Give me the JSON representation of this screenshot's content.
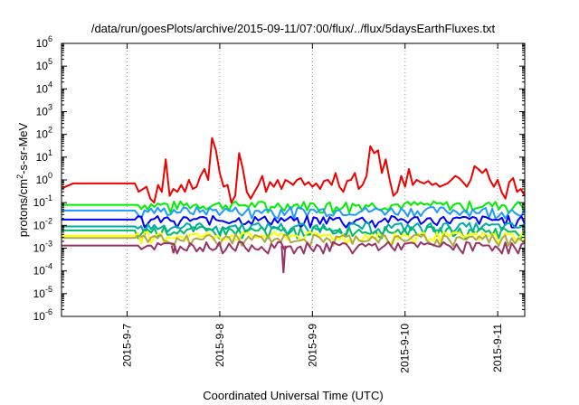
{
  "chart_data": {
    "type": "line",
    "title": "/data/run/goesPlots/archive/2015-09-11/07:00/flux/../flux/5daysEarthFluxes.txt",
    "xlabel": "Coordinated Universal Time (UTC)",
    "ylabel_main": "protons/cm",
    "ylabel_sup": "2",
    "ylabel_rest": "-s-sr-MeV",
    "y_scale": "log",
    "ylim": [
      1e-06,
      1000000.0
    ],
    "y_tick_base": "10",
    "y_ticks": [
      {
        "exp": "-6",
        "value": 1e-06
      },
      {
        "exp": "-5",
        "value": 1e-05
      },
      {
        "exp": "-4",
        "value": 0.0001
      },
      {
        "exp": "-3",
        "value": 0.001
      },
      {
        "exp": "-2",
        "value": 0.01
      },
      {
        "exp": "-1",
        "value": 0.1
      },
      {
        "exp": "0",
        "value": 1
      },
      {
        "exp": "1",
        "value": 10
      },
      {
        "exp": "2",
        "value": 100
      },
      {
        "exp": "3",
        "value": 1000
      },
      {
        "exp": "4",
        "value": 10000
      },
      {
        "exp": "5",
        "value": 100000
      },
      {
        "exp": "6",
        "value": 1000000
      }
    ],
    "xlim": [
      "2015-09-06 07:00",
      "2015-09-11 07:00"
    ],
    "x_ticks": [
      "2015-9-7",
      "2015-9-8",
      "2015-9-9",
      "2015-9-10",
      "2015-9-11"
    ],
    "grid": true,
    "legend": "none",
    "series": [
      {
        "color": "#ee0000",
        "points": [
          [
            "2015-09-06 07:00",
            0.4
          ],
          [
            "2015-09-06 08:00",
            0.5
          ],
          [
            "2015-09-06 10:00",
            0.7
          ],
          [
            "2015-09-06 12:00",
            0.7
          ],
          [
            "2015-09-06 16:00",
            0.7
          ],
          [
            "2015-09-06 20:00",
            0.7
          ],
          [
            "2015-09-07 00:00",
            0.7
          ],
          [
            "2015-09-07 02:00",
            0.7
          ],
          [
            "2015-09-07 03:00",
            0.3
          ],
          [
            "2015-09-07 05:00",
            0.5
          ],
          [
            "2015-09-07 06:00",
            0.15
          ],
          [
            "2015-09-07 07:00",
            0.1
          ],
          [
            "2015-09-07 08:00",
            0.6
          ],
          [
            "2015-09-07 09:00",
            0.3
          ],
          [
            "2015-09-07 10:00",
            8
          ],
          [
            "2015-09-07 11:00",
            0.2
          ],
          [
            "2015-09-07 12:00",
            0.4
          ],
          [
            "2015-09-07 13:00",
            0.3
          ],
          [
            "2015-09-07 14:00",
            0.6
          ],
          [
            "2015-09-07 15:00",
            0.3
          ],
          [
            "2015-09-07 16:00",
            1
          ],
          [
            "2015-09-07 17:00",
            0.4
          ],
          [
            "2015-09-07 18:00",
            0.5
          ],
          [
            "2015-09-07 19:00",
            1.5
          ],
          [
            "2015-09-07 20:00",
            3
          ],
          [
            "2015-09-07 21:00",
            1
          ],
          [
            "2015-09-07 22:00",
            70
          ],
          [
            "2015-09-07 23:00",
            20
          ],
          [
            "2015-09-08 00:00",
            2
          ],
          [
            "2015-09-08 01:00",
            0.5
          ],
          [
            "2015-09-08 02:00",
            0.6
          ],
          [
            "2015-09-08 03:00",
            0.1
          ],
          [
            "2015-09-08 04:00",
            0.2
          ],
          [
            "2015-09-08 05:00",
            15
          ],
          [
            "2015-09-08 06:00",
            3
          ],
          [
            "2015-09-08 07:00",
            0.3
          ],
          [
            "2015-09-08 08:00",
            0.15
          ],
          [
            "2015-09-08 09:00",
            0.3
          ],
          [
            "2015-09-08 10:00",
            0.6
          ],
          [
            "2015-09-08 11:00",
            1.5
          ],
          [
            "2015-09-08 12:00",
            0.3
          ],
          [
            "2015-09-08 13:00",
            0.8
          ],
          [
            "2015-09-08 14:00",
            0.5
          ],
          [
            "2015-09-08 15:00",
            1
          ],
          [
            "2015-09-08 16:00",
            0.4
          ],
          [
            "2015-09-08 17:00",
            1
          ],
          [
            "2015-09-08 18:00",
            0.8
          ],
          [
            "2015-09-08 19:00",
            0.6
          ],
          [
            "2015-09-08 20:00",
            1
          ],
          [
            "2015-09-08 21:00",
            1.2
          ],
          [
            "2015-09-08 22:00",
            0.6
          ],
          [
            "2015-09-08 23:00",
            0.8
          ],
          [
            "2015-09-09 00:00",
            0.5
          ],
          [
            "2015-09-09 01:00",
            0.7
          ],
          [
            "2015-09-09 02:00",
            0.4
          ],
          [
            "2015-09-09 03:00",
            0.9
          ],
          [
            "2015-09-09 04:00",
            1
          ],
          [
            "2015-09-09 05:00",
            0.6
          ],
          [
            "2015-09-09 06:00",
            2
          ],
          [
            "2015-09-09 07:00",
            0.5
          ],
          [
            "2015-09-09 08:00",
            0.3
          ],
          [
            "2015-09-09 09:00",
            0.9
          ],
          [
            "2015-09-09 10:00",
            1
          ],
          [
            "2015-09-09 11:00",
            2
          ],
          [
            "2015-09-09 12:00",
            0.4
          ],
          [
            "2015-09-09 13:00",
            0.6
          ],
          [
            "2015-09-09 14:00",
            1.5
          ],
          [
            "2015-09-09 15:00",
            30
          ],
          [
            "2015-09-09 16:00",
            15
          ],
          [
            "2015-09-09 17:00",
            20
          ],
          [
            "2015-09-09 18:00",
            2
          ],
          [
            "2015-09-09 19:00",
            8
          ],
          [
            "2015-09-09 20:00",
            1
          ],
          [
            "2015-09-09 21:00",
            0.2
          ],
          [
            "2015-09-09 22:00",
            0.3
          ],
          [
            "2015-09-09 23:00",
            1.5
          ],
          [
            "2015-09-10 00:00",
            0.5
          ],
          [
            "2015-09-10 01:00",
            3
          ],
          [
            "2015-09-10 02:00",
            0.6
          ],
          [
            "2015-09-10 03:00",
            1
          ],
          [
            "2015-09-10 04:00",
            0.8
          ],
          [
            "2015-09-10 05:00",
            0.7
          ],
          [
            "2015-09-10 06:00",
            0.9
          ],
          [
            "2015-09-10 07:00",
            0.6
          ],
          [
            "2015-09-10 08:00",
            0.7
          ],
          [
            "2015-09-10 09:00",
            0.5
          ],
          [
            "2015-09-10 10:00",
            0.6
          ],
          [
            "2015-09-10 11:00",
            0.7
          ],
          [
            "2015-09-10 12:00",
            1
          ],
          [
            "2015-09-10 13:00",
            1.5
          ],
          [
            "2015-09-10 14:00",
            1.2
          ],
          [
            "2015-09-10 15:00",
            0.8
          ],
          [
            "2015-09-10 16:00",
            0.5
          ],
          [
            "2015-09-10 17:00",
            1
          ],
          [
            "2015-09-10 18:00",
            4
          ],
          [
            "2015-09-10 19:00",
            3
          ],
          [
            "2015-09-10 20:00",
            2
          ],
          [
            "2015-09-10 21:00",
            3
          ],
          [
            "2015-09-10 22:00",
            1
          ],
          [
            "2015-09-10 23:00",
            0.5
          ],
          [
            "2015-09-11 00:00",
            1
          ],
          [
            "2015-09-11 01:00",
            0.3
          ],
          [
            "2015-09-11 02:00",
            0.15
          ],
          [
            "2015-09-11 03:00",
            0.8
          ],
          [
            "2015-09-11 04:00",
            1.2
          ],
          [
            "2015-09-11 05:00",
            0.3
          ],
          [
            "2015-09-11 06:00",
            0.4
          ],
          [
            "2015-09-11 07:00",
            0.2
          ]
        ]
      },
      {
        "color": "#00ee00",
        "level": 0.08,
        "points": []
      },
      {
        "color": "#1f9aff",
        "level": 0.045,
        "points": []
      },
      {
        "color": "#0000ff",
        "level": 0.018,
        "points": []
      },
      {
        "color": "#00aaaa",
        "level": 0.009,
        "points": []
      },
      {
        "color": "#00bb66",
        "level": 0.006,
        "points": []
      },
      {
        "color": "#ffff00",
        "level": 0.0035,
        "points": []
      },
      {
        "color": "#aaaa44",
        "level": 0.0028,
        "points": []
      },
      {
        "color": "#993366",
        "level": 0.0013,
        "points": []
      }
    ]
  }
}
